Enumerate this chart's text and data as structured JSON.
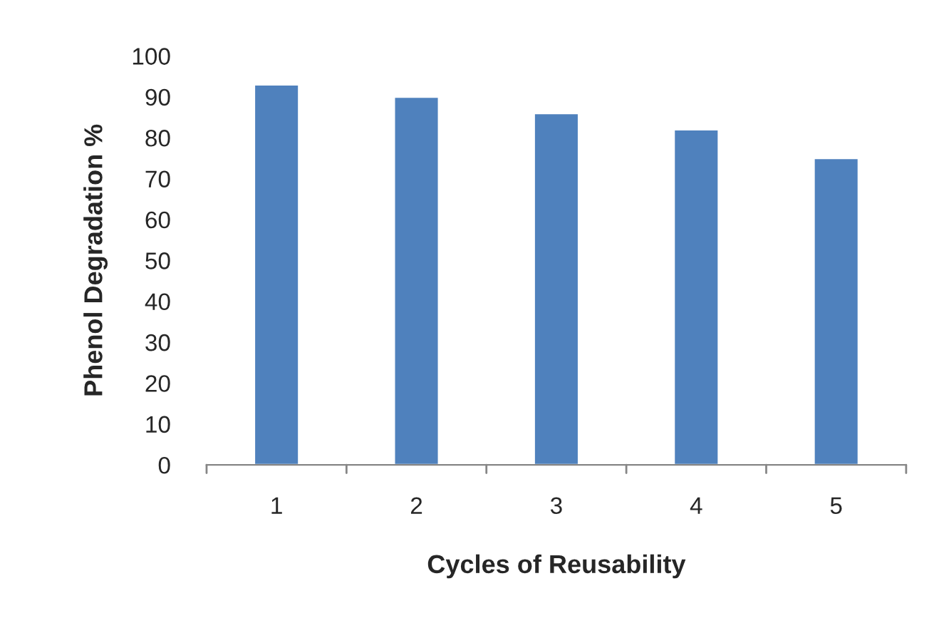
{
  "chart_data": {
    "type": "bar",
    "xlabel": "Cycles of Reusability",
    "ylabel": "Phenol Degradation %",
    "categories": [
      "1",
      "2",
      "3",
      "4",
      "5"
    ],
    "values": [
      93,
      90,
      86,
      82,
      75
    ],
    "color": "#4f81bd",
    "ylim": [
      0,
      100
    ],
    "yticks": [
      0,
      10,
      20,
      30,
      40,
      50,
      60,
      70,
      80,
      90,
      100
    ],
    "grid": false,
    "legend": false
  }
}
